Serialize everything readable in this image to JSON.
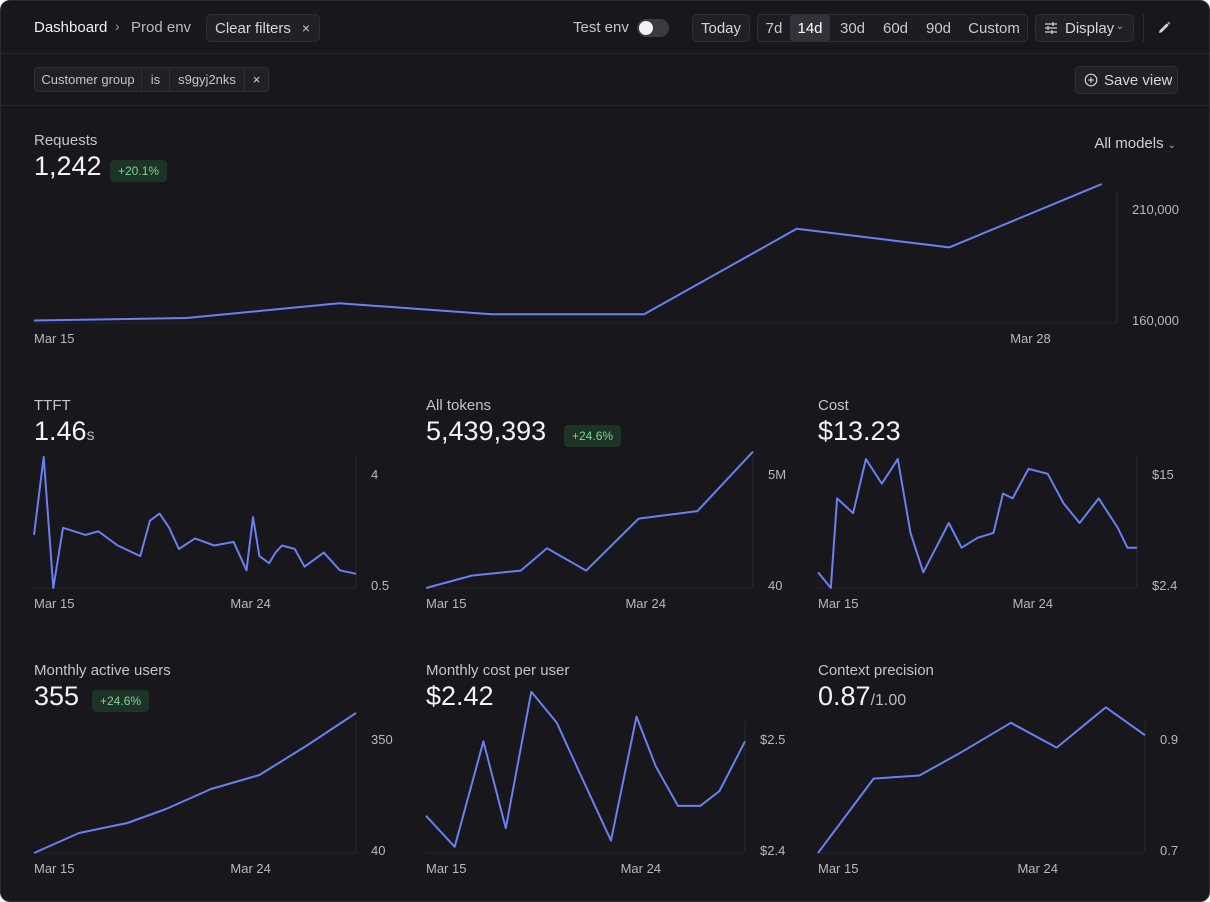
{
  "header": {
    "breadcrumb_root": "Dashboard",
    "breadcrumb_sep": "›",
    "breadcrumb_current": "Prod env",
    "clear_filters_label": "Clear filters",
    "clear_icon": "×",
    "test_env_label": "Test env",
    "test_env_on": false,
    "today_label": "Today",
    "ranges": [
      "7d",
      "14d",
      "30d",
      "60d",
      "90d",
      "Custom"
    ],
    "active_range": "14d",
    "display_label": "Display",
    "chevron": "⌄"
  },
  "filters": {
    "field": "Customer group",
    "operator": "is",
    "value": "s9gyj2nks",
    "remove_icon": "×",
    "save_view_label": "Save view"
  },
  "colors": {
    "line": "#6b7ff0",
    "badge_bg": "#1d3326",
    "badge_fg": "#7fd39a"
  },
  "requests": {
    "title": "Requests",
    "value": "1,242",
    "badge": "+20.1%",
    "models_label": "All models",
    "chart_data": {
      "type": "line",
      "x": [
        0,
        1,
        2,
        3,
        4,
        5,
        6,
        7
      ],
      "values": [
        161000,
        162000,
        168000,
        163500,
        163500,
        198000,
        190500,
        216000
      ],
      "ylim": [
        160000,
        210000
      ],
      "xlim": [
        0,
        7.1
      ],
      "yticks": [
        "210,000",
        "160,000"
      ],
      "xticks": [
        {
          "pos": 0,
          "label": "Mar 15"
        },
        {
          "pos": 6.4,
          "label": "Mar 28"
        }
      ]
    }
  },
  "ttft": {
    "title": "TTFT",
    "value": "1.46",
    "unit": "s",
    "chart_data": {
      "type": "line",
      "x": [
        0,
        0.3,
        0.6,
        0.9,
        1.6,
        2.0,
        2.6,
        3.3,
        3.6,
        3.9,
        4.2,
        4.5,
        5.0,
        5.6,
        6.2,
        6.6,
        6.8,
        7.0,
        7.3,
        7.5,
        7.7,
        8.1,
        8.4,
        9.0,
        9.5,
        10.0
      ],
      "values": [
        2.0,
        4.2,
        0.5,
        2.2,
        2.0,
        2.1,
        1.7,
        1.4,
        2.4,
        2.6,
        2.2,
        1.6,
        1.9,
        1.7,
        1.8,
        1.0,
        2.5,
        1.4,
        1.2,
        1.5,
        1.7,
        1.6,
        1.1,
        1.5,
        1.0,
        0.9
      ],
      "ylim": [
        0.5,
        4
      ],
      "xlim": [
        0,
        10
      ],
      "yticks": [
        "4",
        "0.5"
      ],
      "xticks": [
        {
          "pos": 0,
          "label": "Mar 15"
        },
        {
          "pos": 6.1,
          "label": "Mar 24"
        }
      ]
    }
  },
  "tokens": {
    "title": "All tokens",
    "value": "5,439,393",
    "badge": "+24.6%",
    "chart_data": {
      "type": "line",
      "x": [
        0,
        1.4,
        2.9,
        3.7,
        4.9,
        6.5,
        8.3,
        10.0
      ],
      "values": [
        40,
        500000,
        700000,
        1600000,
        700000,
        2800000,
        3100000,
        5500000
      ],
      "ylim": [
        40,
        5000000
      ],
      "xlim": [
        0,
        10
      ],
      "yticks": [
        "5M",
        "40"
      ],
      "xticks": [
        {
          "pos": 0,
          "label": "Mar 15"
        },
        {
          "pos": 6.1,
          "label": "Mar 24"
        }
      ]
    }
  },
  "cost": {
    "title": "Cost",
    "value": "$13.23",
    "chart_data": {
      "type": "line",
      "x": [
        0,
        0.4,
        0.6,
        1.1,
        1.5,
        2.0,
        2.5,
        2.9,
        3.3,
        3.7,
        4.1,
        4.5,
        5.0,
        5.5,
        5.8,
        6.1,
        6.6,
        7.2,
        7.7,
        8.2,
        8.8,
        9.4,
        9.7,
        10.0
      ],
      "values": [
        4.0,
        2.4,
        11.5,
        10.0,
        15.5,
        13.0,
        15.5,
        8.0,
        4.0,
        6.5,
        9.0,
        6.5,
        7.5,
        8.0,
        12.0,
        11.5,
        14.5,
        14.0,
        11.0,
        9.0,
        11.5,
        8.5,
        6.5,
        6.5
      ],
      "ylim": [
        2.4,
        15
      ],
      "xlim": [
        0,
        10
      ],
      "yticks": [
        "$15",
        "$2.4"
      ],
      "xticks": [
        {
          "pos": 0,
          "label": "Mar 15"
        },
        {
          "pos": 6.1,
          "label": "Mar 24"
        }
      ]
    }
  },
  "mau": {
    "title": "Monthly active users",
    "value": "355",
    "badge": "+24.6%",
    "chart_data": {
      "type": "line",
      "x": [
        0,
        1.4,
        2.9,
        4.1,
        5.5,
        7.0,
        8.5,
        10.0
      ],
      "values": [
        40,
        90,
        115,
        150,
        200,
        235,
        310,
        390
      ],
      "ylim": [
        40,
        350
      ],
      "xlim": [
        0,
        10
      ],
      "yticks": [
        "350",
        "40"
      ],
      "xticks": [
        {
          "pos": 0,
          "label": "Mar 15"
        },
        {
          "pos": 6.1,
          "label": "Mar 24"
        }
      ]
    }
  },
  "cost_per_user": {
    "title": "Monthly cost per user",
    "value": "$2.42",
    "chart_data": {
      "type": "line",
      "x": [
        0,
        0.9,
        1.8,
        2.5,
        3.3,
        4.1,
        4.9,
        5.8,
        6.6,
        7.2,
        7.9,
        8.6,
        9.2,
        10.0
      ],
      "values": [
        2.43,
        2.405,
        2.49,
        2.42,
        2.53,
        2.505,
        2.46,
        2.41,
        2.51,
        2.47,
        2.438,
        2.438,
        2.45,
        2.49
      ],
      "ylim": [
        2.4,
        2.5
      ],
      "xlim": [
        0,
        10
      ],
      "yticks": [
        "$2.5",
        "$2.4"
      ],
      "xticks": [
        {
          "pos": 0,
          "label": "Mar 15"
        },
        {
          "pos": 6.1,
          "label": "Mar 24"
        }
      ]
    }
  },
  "context_precision": {
    "title": "Context precision",
    "value": "0.87",
    "unit": "/1.00",
    "chart_data": {
      "type": "line",
      "x": [
        0,
        1.7,
        3.1,
        4.3,
        5.9,
        7.3,
        8.8,
        10.0
      ],
      "values": [
        0.7,
        0.82,
        0.825,
        0.86,
        0.91,
        0.87,
        0.935,
        0.89
      ],
      "ylim": [
        0.7,
        0.9
      ],
      "xlim": [
        0,
        10
      ],
      "yticks": [
        "0.9",
        "0.7"
      ],
      "xticks": [
        {
          "pos": 0,
          "label": "Mar 15"
        },
        {
          "pos": 6.1,
          "label": "Mar 24"
        }
      ]
    }
  }
}
